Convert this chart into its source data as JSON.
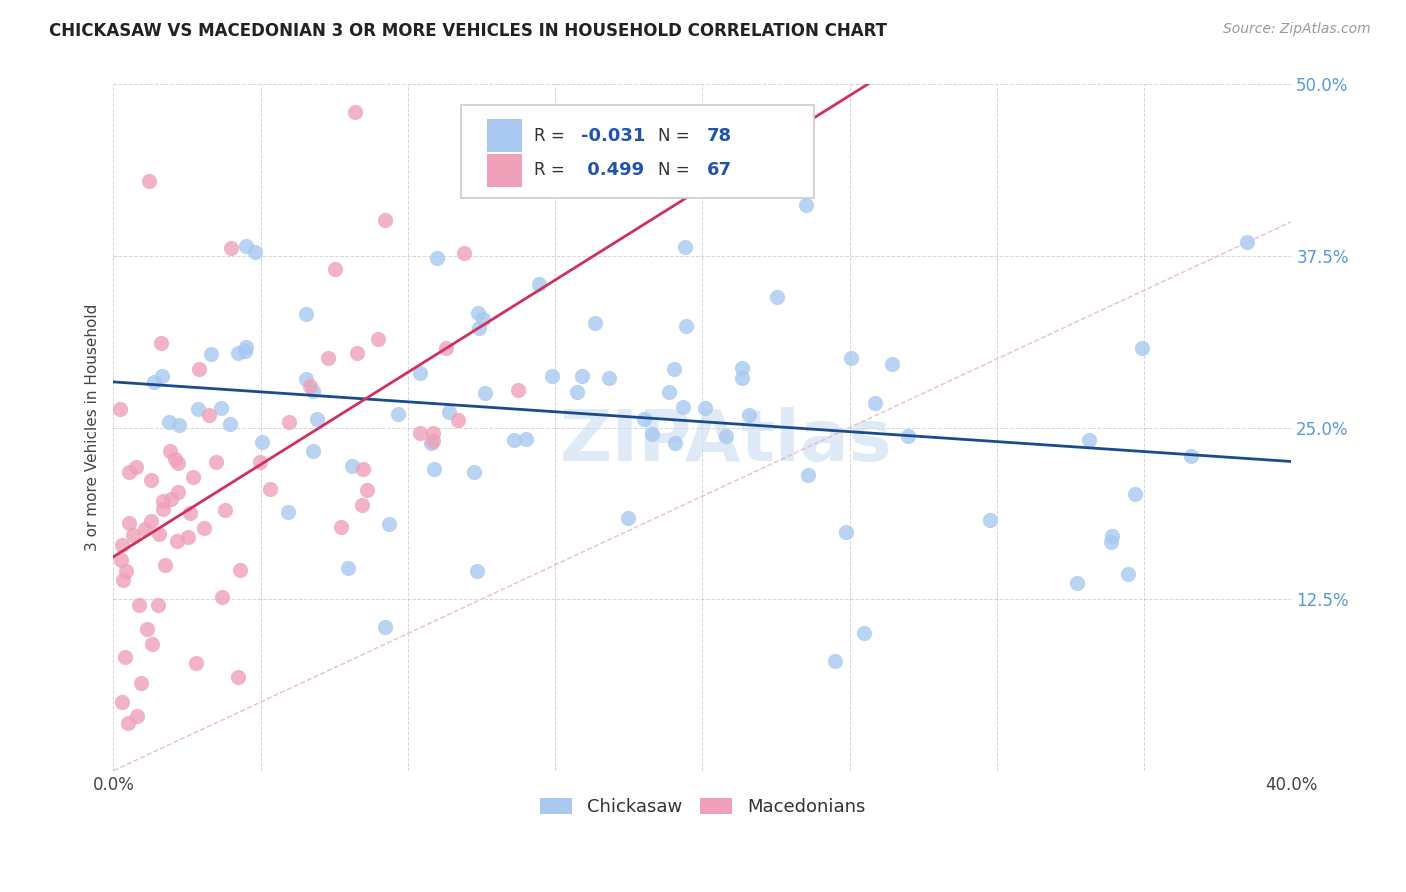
{
  "title": "CHICKASAW VS MACEDONIAN 3 OR MORE VEHICLES IN HOUSEHOLD CORRELATION CHART",
  "source": "Source: ZipAtlas.com",
  "ylabel": "3 or more Vehicles in Household",
  "xlim": [
    0.0,
    0.4
  ],
  "ylim": [
    0.0,
    0.5
  ],
  "legend_label1": "Chickasaw",
  "legend_label2": "Macedonians",
  "r1": "-0.031",
  "n1": "78",
  "r2": "0.499",
  "n2": "67",
  "color_chickasaw": "#A8C8F0",
  "color_macedonian": "#F0A0B8",
  "line_color_chickasaw": "#1A4B8C",
  "line_color_macedonian": "#D03060",
  "diagonal_color": "#E8B8C0",
  "watermark": "ZIPAtlas",
  "watermark_color": "#C8DCF0"
}
